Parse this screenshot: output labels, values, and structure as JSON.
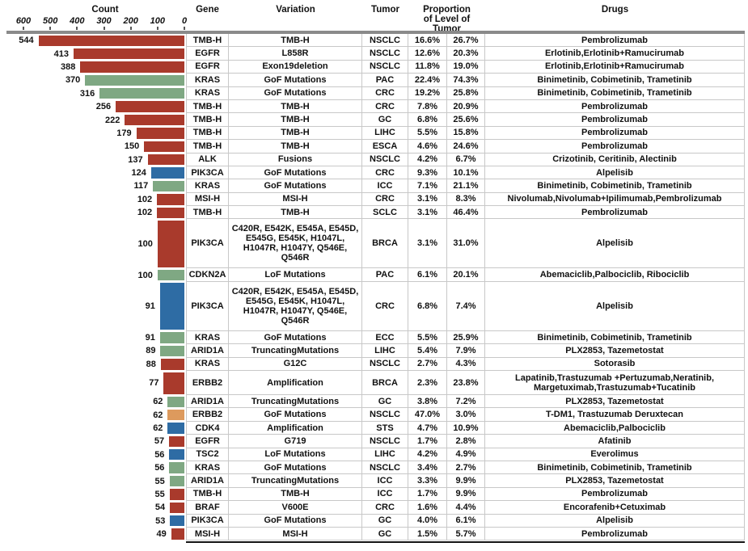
{
  "palette": {
    "red": "#a93a2c",
    "green": "#7fa883",
    "blue": "#2e6ca4",
    "orange": "#dd9a5d",
    "header_bar": "#8a8a8a",
    "cell_border": "#c8c8c8"
  },
  "header": {
    "count": "Count",
    "gene": "Gene",
    "variation": "Variation",
    "tumor": "Tumor",
    "proportion_line1": "Proportion",
    "proportion_line2": "of Level of Tumor",
    "drugs": "Drugs"
  },
  "chart_data": {
    "type": "bar",
    "orientation": "horizontal-right-anchored",
    "xlabel": "Count",
    "xlim": [
      0,
      600
    ],
    "axis_ticks": [
      600,
      500,
      400,
      300,
      200,
      100,
      0
    ],
    "grid": false,
    "rows": [
      {
        "count": 544,
        "color": "red",
        "gene": "TMB-H",
        "variation": "TMB-H",
        "tumor": "NSCLC",
        "prop1": "16.6%",
        "prop2": "26.7%",
        "drugs": "Pembrolizumab",
        "kind": "standard"
      },
      {
        "count": 413,
        "color": "red",
        "gene": "EGFR",
        "variation": "L858R",
        "tumor": "NSCLC",
        "prop1": "12.6%",
        "prop2": "20.3%",
        "drugs": "Erlotinib,Erlotinib+Ramucirumab",
        "kind": "standard"
      },
      {
        "count": 388,
        "color": "red",
        "gene": "EGFR",
        "variation": "Exon19deletion",
        "tumor": "NSCLC",
        "prop1": "11.8%",
        "prop2": "19.0%",
        "drugs": "Erlotinib,Erlotinib+Ramucirumab",
        "kind": "standard"
      },
      {
        "count": 370,
        "color": "green",
        "gene": "KRAS",
        "variation": "GoF Mutations",
        "tumor": "PAC",
        "prop1": "22.4%",
        "prop2": "74.3%",
        "drugs": "Binimetinib, Cobimetinib, Trametinib",
        "kind": "standard"
      },
      {
        "count": 316,
        "color": "green",
        "gene": "KRAS",
        "variation": "GoF Mutations",
        "tumor": "CRC",
        "prop1": "19.2%",
        "prop2": "25.8%",
        "drugs": "Binimetinib, Cobimetinib, Trametinib",
        "kind": "standard"
      },
      {
        "count": 256,
        "color": "red",
        "gene": "TMB-H",
        "variation": "TMB-H",
        "tumor": "CRC",
        "prop1": "7.8%",
        "prop2": "20.9%",
        "drugs": "Pembrolizumab",
        "kind": "standard"
      },
      {
        "count": 222,
        "color": "red",
        "gene": "TMB-H",
        "variation": "TMB-H",
        "tumor": "GC",
        "prop1": "6.8%",
        "prop2": "25.6%",
        "drugs": "Pembrolizumab",
        "kind": "standard"
      },
      {
        "count": 179,
        "color": "red",
        "gene": "TMB-H",
        "variation": "TMB-H",
        "tumor": "LIHC",
        "prop1": "5.5%",
        "prop2": "15.8%",
        "drugs": "Pembrolizumab",
        "kind": "standard"
      },
      {
        "count": 150,
        "color": "red",
        "gene": "TMB-H",
        "variation": "TMB-H",
        "tumor": "ESCA",
        "prop1": "4.6%",
        "prop2": "24.6%",
        "drugs": "Pembrolizumab",
        "kind": "standard"
      },
      {
        "count": 137,
        "color": "red",
        "gene": "ALK",
        "variation": "Fusions",
        "tumor": "NSCLC",
        "prop1": "4.2%",
        "prop2": "6.7%",
        "drugs": "Crizotinib, Ceritinib, Alectinib",
        "kind": "standard"
      },
      {
        "count": 124,
        "color": "blue",
        "gene": "PIK3CA",
        "variation": "GoF Mutations",
        "tumor": "CRC",
        "prop1": "9.3%",
        "prop2": "10.1%",
        "drugs": "Alpelisib",
        "kind": "standard"
      },
      {
        "count": 117,
        "color": "green",
        "gene": "KRAS",
        "variation": "GoF Mutations",
        "tumor": "ICC",
        "prop1": "7.1%",
        "prop2": "21.1%",
        "drugs": "Binimetinib, Cobimetinib, Trametinib",
        "kind": "standard"
      },
      {
        "count": 102,
        "color": "red",
        "gene": "MSI-H",
        "variation": "MSI-H",
        "tumor": "CRC",
        "prop1": "3.1%",
        "prop2": "8.3%",
        "drugs": "Nivolumab,Nivolumab+Ipilimumab,Pembrolizumab",
        "kind": "standard"
      },
      {
        "count": 102,
        "color": "red",
        "gene": "TMB-H",
        "variation": "TMB-H",
        "tumor": "SCLC",
        "prop1": "3.1%",
        "prop2": "46.4%",
        "drugs": "Pembrolizumab",
        "kind": "standard"
      },
      {
        "count": 100,
        "color": "red",
        "gene": "PIK3CA",
        "variation": "C420R, E542K, E545A, E545D, E545G, E545K, H1047L, H1047R, H1047Y, Q546E, Q546R",
        "tumor": "BRCA",
        "prop1": "3.1%",
        "prop2": "31.0%",
        "drugs": "Alpelisib",
        "kind": "tall"
      },
      {
        "count": 100,
        "color": "green",
        "gene": "CDKN2A",
        "variation": "LoF Mutations",
        "tumor": "PAC",
        "prop1": "6.1%",
        "prop2": "20.1%",
        "drugs": "Abemaciclib,Palbociclib, Ribociclib",
        "kind": "standard"
      },
      {
        "count": 91,
        "color": "blue",
        "gene": "PIK3CA",
        "variation": "C420R, E542K, E545A, E545D, E545G, E545K, H1047L, H1047R, H1047Y, Q546E, Q546R",
        "tumor": "CRC",
        "prop1": "6.8%",
        "prop2": "7.4%",
        "drugs": "Alpelisib",
        "kind": "tall"
      },
      {
        "count": 91,
        "color": "green",
        "gene": "KRAS",
        "variation": "GoF Mutations",
        "tumor": "ECC",
        "prop1": "5.5%",
        "prop2": "25.9%",
        "drugs": "Binimetinib, Cobimetinib, Trametinib",
        "kind": "standard"
      },
      {
        "count": 89,
        "color": "green",
        "gene": "ARID1A",
        "variation": "TruncatingMutations",
        "tumor": "LIHC",
        "prop1": "5.4%",
        "prop2": "7.9%",
        "drugs": "PLX2853, Tazemetostat",
        "kind": "standard"
      },
      {
        "count": 88,
        "color": "red",
        "gene": "KRAS",
        "variation": "G12C",
        "tumor": "NSCLC",
        "prop1": "2.7%",
        "prop2": "4.3%",
        "drugs": "Sotorasib",
        "kind": "standard"
      },
      {
        "count": 77,
        "color": "red",
        "gene": "ERBB2",
        "variation": "Amplification",
        "tumor": "BRCA",
        "prop1": "2.3%",
        "prop2": "23.8%",
        "drugs": "Lapatinib,Trastuzumab +Pertuzumab,Neratinib, Margetuximab,Trastuzumab+Tucatinib",
        "kind": "medium"
      },
      {
        "count": 62,
        "color": "green",
        "gene": "ARID1A",
        "variation": "TruncatingMutations",
        "tumor": "GC",
        "prop1": "3.8%",
        "prop2": "7.2%",
        "drugs": "PLX2853, Tazemetostat",
        "kind": "standard"
      },
      {
        "count": 62,
        "color": "orange",
        "gene": "ERBB2",
        "variation": "GoF Mutations",
        "tumor": "NSCLC",
        "prop1": "47.0%",
        "prop2": "3.0%",
        "drugs": "T-DM1, Trastuzumab Deruxtecan",
        "kind": "standard"
      },
      {
        "count": 62,
        "color": "blue",
        "gene": "CDK4",
        "variation": "Amplification",
        "tumor": "STS",
        "prop1": "4.7%",
        "prop2": "10.9%",
        "drugs": "Abemaciclib,Palbociclib",
        "kind": "standard"
      },
      {
        "count": 57,
        "color": "red",
        "gene": "EGFR",
        "variation": "G719",
        "tumor": "NSCLC",
        "prop1": "1.7%",
        "prop2": "2.8%",
        "drugs": "Afatinib",
        "kind": "standard"
      },
      {
        "count": 56,
        "color": "blue",
        "gene": "TSC2",
        "variation": "LoF Mutations",
        "tumor": "LIHC",
        "prop1": "4.2%",
        "prop2": "4.9%",
        "drugs": "Everolimus",
        "kind": "standard"
      },
      {
        "count": 56,
        "color": "green",
        "gene": "KRAS",
        "variation": "GoF Mutations",
        "tumor": "NSCLC",
        "prop1": "3.4%",
        "prop2": "2.7%",
        "drugs": "Binimetinib, Cobimetinib, Trametinib",
        "kind": "standard"
      },
      {
        "count": 55,
        "color": "green",
        "gene": "ARID1A",
        "variation": "TruncatingMutations",
        "tumor": "ICC",
        "prop1": "3.3%",
        "prop2": "9.9%",
        "drugs": "PLX2853, Tazemetostat",
        "kind": "standard"
      },
      {
        "count": 55,
        "color": "red",
        "gene": "TMB-H",
        "variation": "TMB-H",
        "tumor": "ICC",
        "prop1": "1.7%",
        "prop2": "9.9%",
        "drugs": "Pembrolizumab",
        "kind": "standard"
      },
      {
        "count": 54,
        "color": "red",
        "gene": "BRAF",
        "variation": "V600E",
        "tumor": "CRC",
        "prop1": "1.6%",
        "prop2": "4.4%",
        "drugs": "Encorafenib+Cetuximab",
        "kind": "standard"
      },
      {
        "count": 53,
        "color": "blue",
        "gene": "PIK3CA",
        "variation": "GoF Mutations",
        "tumor": "GC",
        "prop1": "4.0%",
        "prop2": "6.1%",
        "drugs": "Alpelisib",
        "kind": "standard"
      },
      {
        "count": 49,
        "color": "red",
        "gene": "MSI-H",
        "variation": "MSI-H",
        "tumor": "GC",
        "prop1": "1.5%",
        "prop2": "5.7%",
        "drugs": "Pembrolizumab",
        "kind": "standard"
      }
    ]
  }
}
